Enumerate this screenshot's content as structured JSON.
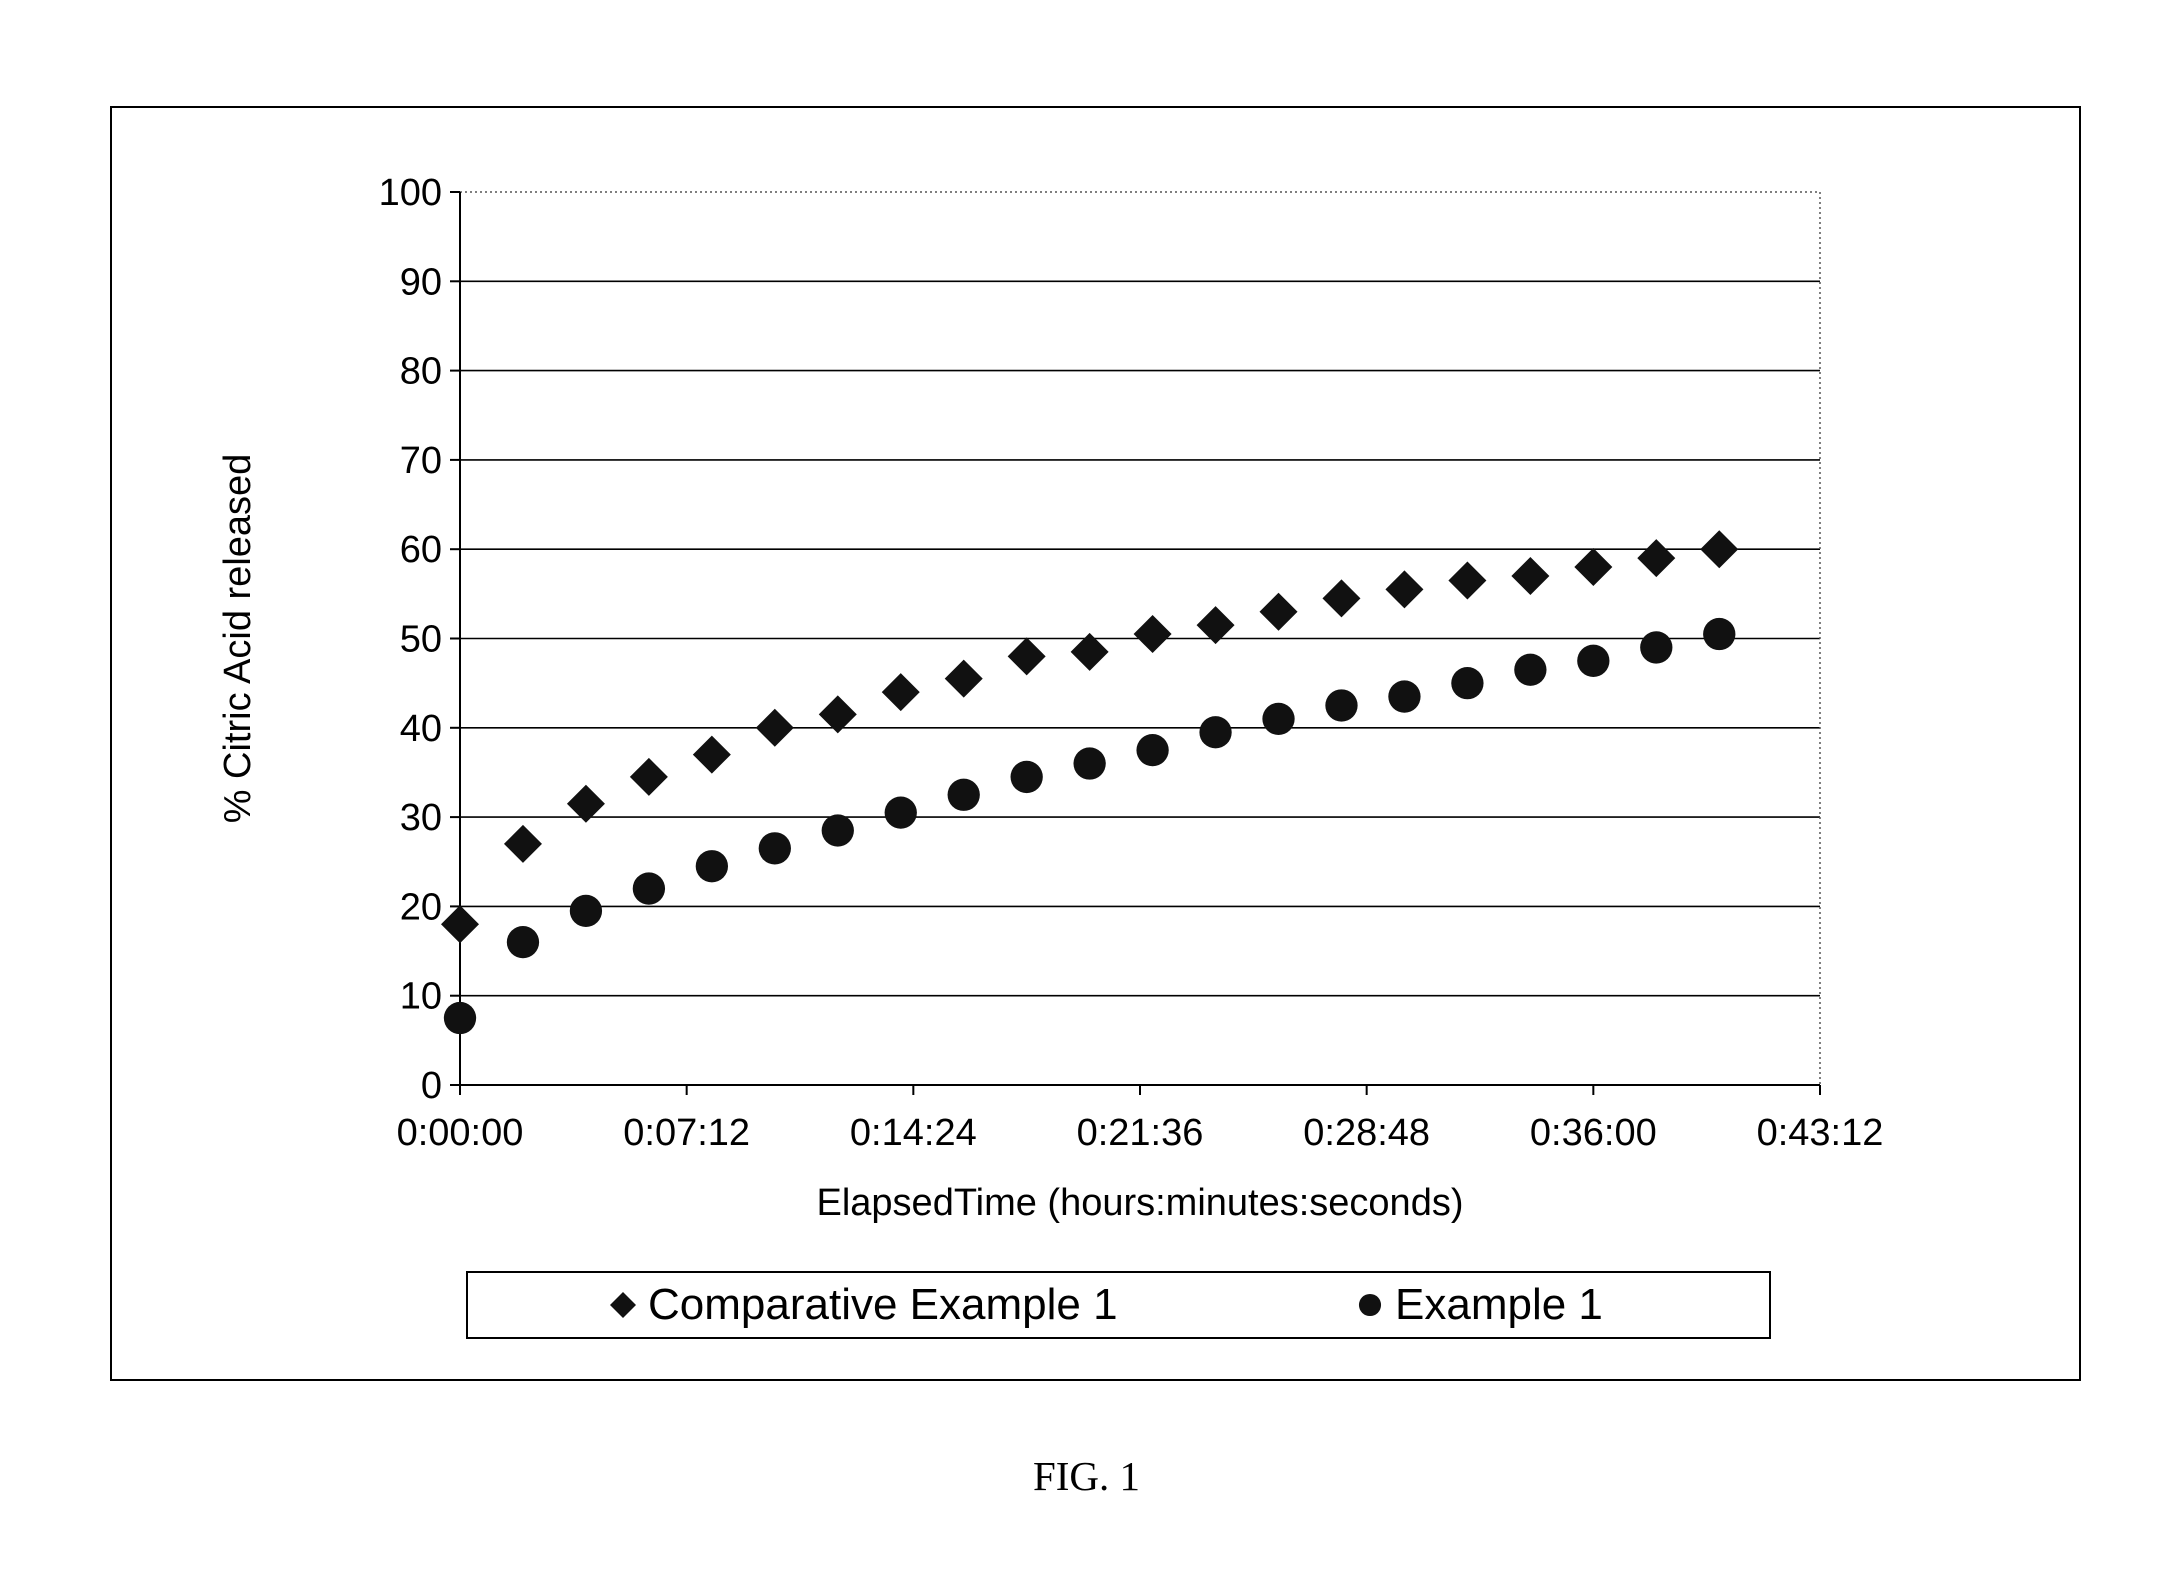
{
  "caption": "FIG. 1",
  "chart_data": {
    "type": "scatter",
    "title": "",
    "xlabel": "ElapsedTime (hours:minutes:seconds)",
    "ylabel": "% Citric Acid released",
    "xlim": [
      "0:00:00",
      "0:43:12"
    ],
    "ylim": [
      0,
      100
    ],
    "x_ticks": [
      "0:00:00",
      "0:07:12",
      "0:14:24",
      "0:21:36",
      "0:28:48",
      "0:36:00",
      "0:43:12"
    ],
    "y_ticks": [
      0,
      10,
      20,
      30,
      40,
      50,
      60,
      70,
      80,
      90,
      100
    ],
    "grid": "horizontal",
    "legend": "bottom",
    "x": [
      "0:00:00",
      "0:02:00",
      "0:04:00",
      "0:06:00",
      "0:08:00",
      "0:10:00",
      "0:12:00",
      "0:14:00",
      "0:16:00",
      "0:18:00",
      "0:20:00",
      "0:22:00",
      "0:24:00",
      "0:26:00",
      "0:28:00",
      "0:30:00",
      "0:32:00",
      "0:34:00",
      "0:36:00",
      "0:38:00",
      "0:40:00"
    ],
    "series": [
      {
        "name": "Comparative Example 1",
        "marker": "diamond",
        "values": [
          18,
          27,
          31.5,
          34.5,
          37,
          40,
          41.5,
          44,
          45.5,
          48,
          48.5,
          50.5,
          51.5,
          53,
          54.5,
          55.5,
          56.5,
          57,
          58,
          59,
          60
        ]
      },
      {
        "name": "Example 1",
        "marker": "circle",
        "values": [
          7.5,
          16,
          19.5,
          22,
          24.5,
          26.5,
          28.5,
          30.5,
          32.5,
          34.5,
          36,
          37.5,
          39.5,
          41,
          42.5,
          43.5,
          45,
          46.5,
          47.5,
          49,
          50.5
        ]
      }
    ],
    "colors": {
      "marker": "#111111",
      "grid": "#000000",
      "frame": "#000000"
    }
  }
}
